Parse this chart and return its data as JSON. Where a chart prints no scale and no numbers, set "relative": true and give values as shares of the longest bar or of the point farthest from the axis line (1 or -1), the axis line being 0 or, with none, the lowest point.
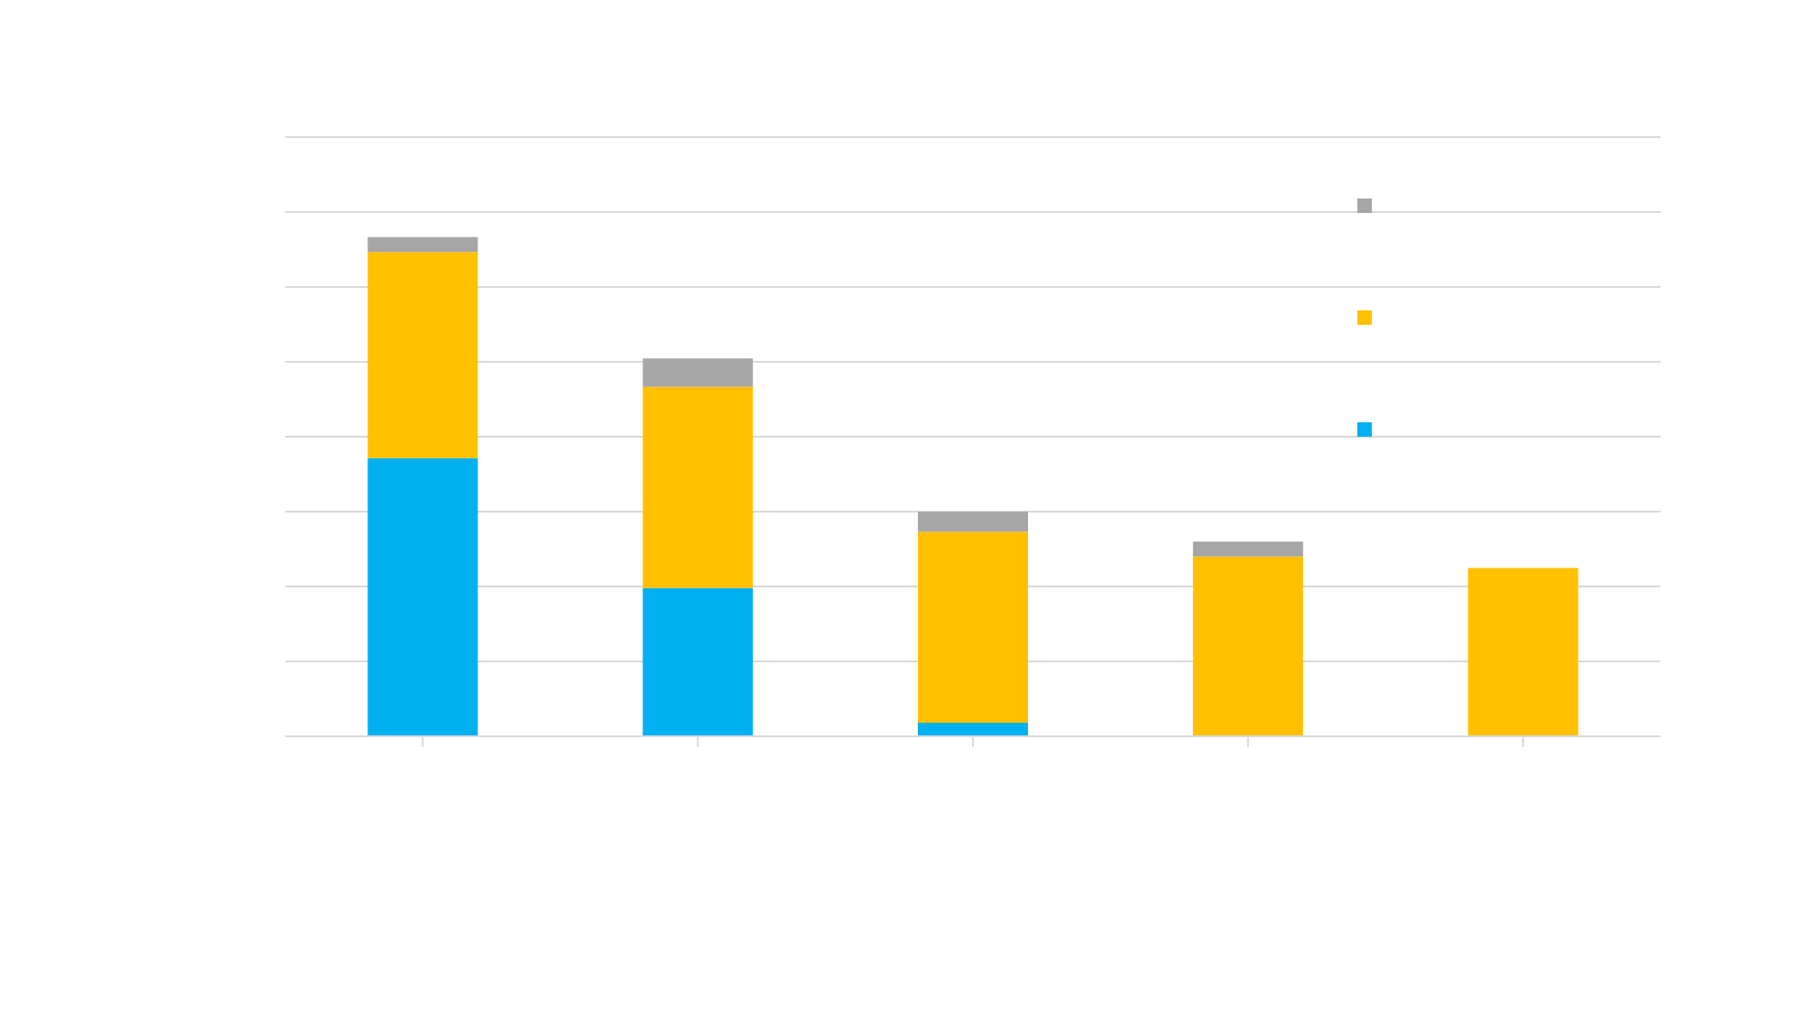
{
  "chart_data": {
    "type": "bar",
    "stacked": true,
    "relative": true,
    "grid": "y",
    "categories": [
      null,
      null,
      null,
      null,
      null
    ],
    "series": [
      {
        "color": "#00b0f0",
        "values": [
          0.557,
          0.297,
          0.027,
          0,
          0
        ]
      },
      {
        "color": "#ffc000",
        "values": [
          0.413,
          0.403,
          0.383,
          0.36,
          0.337
        ]
      },
      {
        "color": "#a6a6a6",
        "values": [
          0.03,
          0.057,
          0.04,
          0.03,
          0
        ]
      }
    ]
  }
}
